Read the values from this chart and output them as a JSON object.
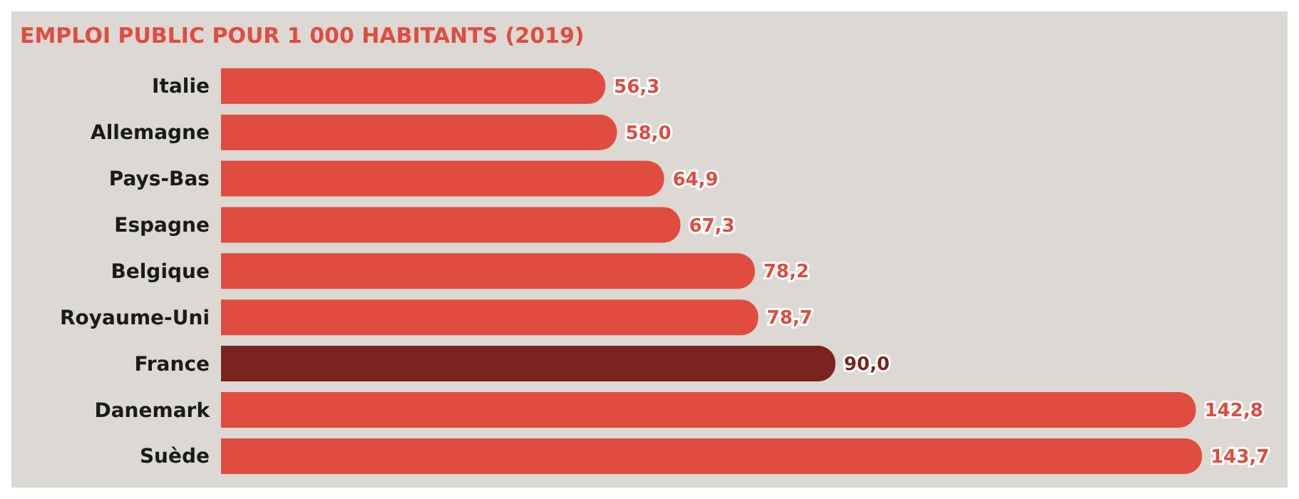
{
  "chart_data": {
    "type": "bar",
    "orientation": "horizontal",
    "title": "EMPLOI PUBLIC POUR 1 000 HABITANTS (2019)",
    "categories": [
      "Italie",
      "Allemagne",
      "Pays-Bas",
      "Espagne",
      "Belgique",
      "Royaume-Uni",
      "France",
      "Danemark",
      "Suède"
    ],
    "values": [
      56.3,
      58.0,
      64.9,
      67.3,
      78.2,
      78.7,
      90.0,
      142.8,
      143.7
    ],
    "value_labels": [
      "56,3",
      "58,0",
      "64,9",
      "67,3",
      "78,2",
      "78,7",
      "90,0",
      "142,8",
      "143,7"
    ],
    "colors": [
      "#e04c40",
      "#e04c40",
      "#e04c40",
      "#e04c40",
      "#e04c40",
      "#e04c40",
      "#7b231e",
      "#e04c40",
      "#e04c40"
    ],
    "grid": false,
    "legend": false
  }
}
